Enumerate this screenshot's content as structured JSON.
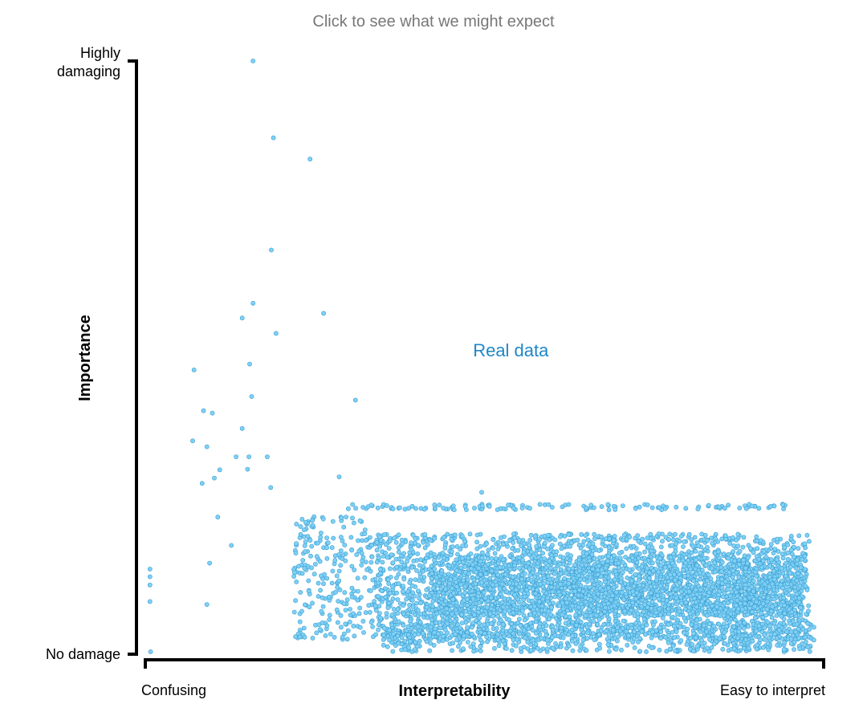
{
  "header": {
    "link_text": "Click to see what we might expect"
  },
  "chart_data": {
    "type": "scatter",
    "title": "",
    "xlabel": "Interpretability",
    "ylabel": "Importance",
    "xlim": [
      0,
      1
    ],
    "ylim": [
      0,
      1
    ],
    "x_tick_labels": {
      "min": "Confusing",
      "max": "Easy to interpret"
    },
    "y_tick_labels": {
      "min": "No damage",
      "max_line1": "Highly",
      "max_line2": "damaging"
    },
    "annotation": {
      "text": "Real data",
      "x": 0.54,
      "y": 0.5
    },
    "point_color": "#7fd0f5",
    "point_stroke": "#3a9ed0",
    "annotation_color": "#1f87c8",
    "series": [
      {
        "points": [
          [
            0.16,
            1.0
          ],
          [
            0.19,
            0.87
          ],
          [
            0.244,
            0.834
          ],
          [
            0.187,
            0.68
          ],
          [
            0.16,
            0.59
          ],
          [
            0.144,
            0.565
          ],
          [
            0.264,
            0.573
          ],
          [
            0.194,
            0.539
          ],
          [
            0.155,
            0.487
          ],
          [
            0.073,
            0.477
          ],
          [
            0.158,
            0.432
          ],
          [
            0.311,
            0.426
          ],
          [
            0.087,
            0.408
          ],
          [
            0.1,
            0.404
          ],
          [
            0.144,
            0.378
          ],
          [
            0.071,
            0.357
          ],
          [
            0.092,
            0.347
          ],
          [
            0.135,
            0.33
          ],
          [
            0.154,
            0.33
          ],
          [
            0.181,
            0.33
          ],
          [
            0.111,
            0.308
          ],
          [
            0.152,
            0.309
          ],
          [
            0.103,
            0.294
          ],
          [
            0.085,
            0.285
          ],
          [
            0.287,
            0.296
          ],
          [
            0.186,
            0.278
          ],
          [
            0.497,
            0.27
          ],
          [
            0.008,
            0.14
          ],
          [
            0.008,
            0.127
          ],
          [
            0.008,
            0.113
          ],
          [
            0.008,
            0.085
          ],
          [
            0.009,
            0.0
          ],
          [
            0.108,
            0.228
          ],
          [
            0.128,
            0.18
          ],
          [
            0.096,
            0.15
          ],
          [
            0.092,
            0.08
          ]
        ],
        "clusters": [
          {
            "x_range": [
              0.3,
              0.95
            ],
            "y_range": [
              0.25,
              0.24
            ],
            "count": 130
          },
          {
            "x_range": [
              0.22,
              0.35
            ],
            "y_range": [
              0.02,
              0.23
            ],
            "count": 260
          },
          {
            "x_range": [
              0.34,
              0.98
            ],
            "y_range": [
              0.02,
              0.2
            ],
            "count": 2400
          },
          {
            "x_range": [
              0.42,
              0.97
            ],
            "y_range": [
              0.06,
              0.16
            ],
            "count": 1800
          },
          {
            "x_range": [
              0.35,
              0.99
            ],
            "y_range": [
              0.0,
              0.05
            ],
            "count": 700
          }
        ]
      }
    ]
  }
}
